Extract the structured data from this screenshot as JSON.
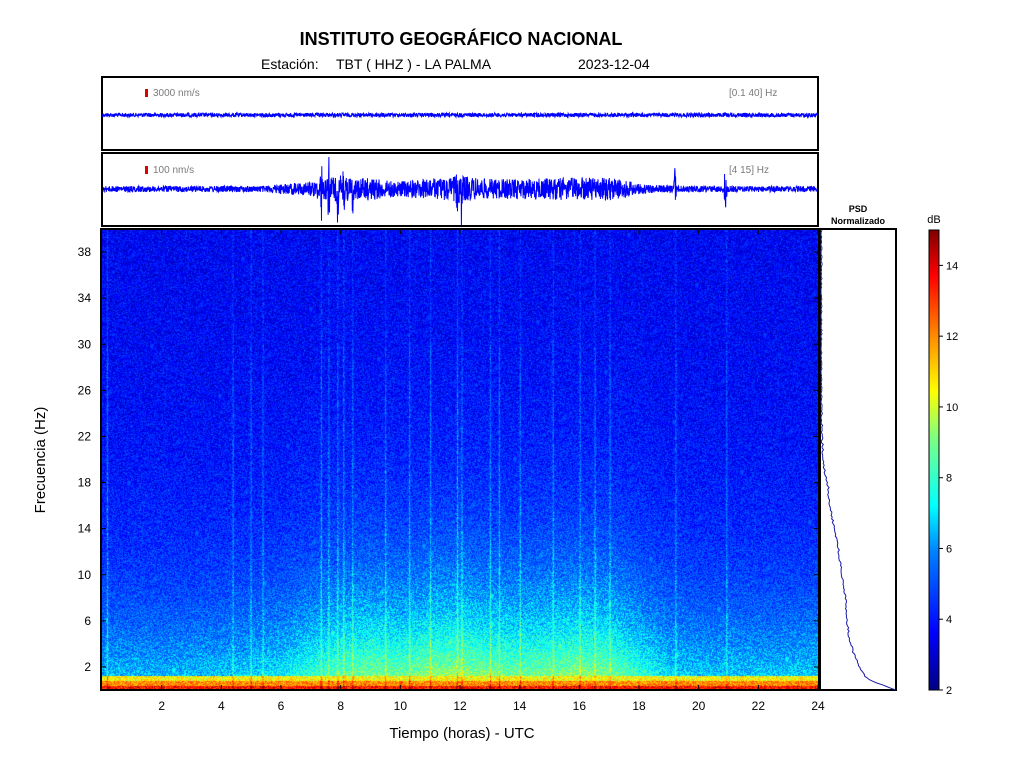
{
  "header": {
    "title": "INSTITUTO GEOGRÁFICO NACIONAL",
    "station_label": "Estación:",
    "station": "TBT ( HHZ ) - LA PALMA",
    "date": "2023-12-04"
  },
  "colors": {
    "trace": "#0000ff",
    "scale_bar": "#e00000",
    "psd_line": "#1a1aa8",
    "colormap": [
      "#000083",
      "#0000ff",
      "#0080ff",
      "#00ffff",
      "#80ff80",
      "#ffff00",
      "#ff8000",
      "#ff0000",
      "#800000"
    ]
  },
  "chart_data": [
    {
      "type": "line",
      "panel": "seismogram-broadband",
      "scale_label": "3000 nm/s",
      "filter_label": "[0.1 40] Hz",
      "x_range": [
        0,
        24
      ],
      "amplitude_envelope": {
        "x": [
          0,
          24
        ],
        "y": [
          0.06,
          0.06
        ]
      }
    },
    {
      "type": "line",
      "panel": "seismogram-filtered",
      "scale_label": "100 nm/s",
      "filter_label": "[4 15] Hz",
      "x_range": [
        0,
        24
      ],
      "amplitude_envelope": {
        "x": [
          0,
          5.5,
          6,
          7,
          7.3,
          7.7,
          8,
          8.4,
          9,
          9.5,
          10,
          11,
          11.8,
          12,
          12.2,
          13,
          14,
          15,
          16,
          17,
          17.5,
          18,
          19,
          20,
          22,
          24
        ],
        "y": [
          0.08,
          0.09,
          0.14,
          0.2,
          0.28,
          0.32,
          0.38,
          0.3,
          0.32,
          0.25,
          0.22,
          0.3,
          0.34,
          0.4,
          0.34,
          0.28,
          0.28,
          0.3,
          0.32,
          0.33,
          0.26,
          0.14,
          0.1,
          0.09,
          0.08,
          0.08
        ]
      },
      "spikes": [
        {
          "x": 7.35,
          "amp": 1.0
        },
        {
          "x": 7.6,
          "amp": 1.0
        },
        {
          "x": 7.9,
          "amp": 1.0
        },
        {
          "x": 8.1,
          "amp": 0.8
        },
        {
          "x": 8.4,
          "amp": 0.7
        },
        {
          "x": 11.9,
          "amp": 0.9
        },
        {
          "x": 12.05,
          "amp": 1.0
        },
        {
          "x": 19.2,
          "amp": 0.55
        },
        {
          "x": 20.9,
          "amp": 0.75
        }
      ]
    },
    {
      "type": "heatmap",
      "panel": "spectrogram",
      "xlabel": "Tiempo (horas) - UTC",
      "ylabel": "Frecuencia  (Hz)",
      "xlim": [
        0,
        24
      ],
      "ylim": [
        0,
        40
      ],
      "xticks": [
        2,
        4,
        6,
        8,
        10,
        12,
        14,
        16,
        18,
        20,
        22,
        24
      ],
      "yticks": [
        2,
        6,
        10,
        14,
        18,
        22,
        26,
        30,
        34,
        38
      ],
      "grid": false,
      "vertical_events_hours": [
        0.2,
        4.4,
        5.0,
        5.4,
        7.35,
        7.6,
        7.9,
        8.1,
        8.4,
        9.5,
        10.3,
        11.0,
        11.9,
        12.05,
        13.0,
        13.3,
        14.0,
        15.1,
        16.0,
        16.5,
        17.0,
        19.2,
        20.9
      ],
      "spectral_energy_profile": {
        "time_hours": [
          0,
          2,
          4,
          6,
          7,
          8,
          9,
          10,
          11,
          12,
          13,
          14,
          15,
          16,
          17,
          18,
          19,
          20,
          22,
          24
        ],
        "low_freq_db": [
          6.5,
          6.5,
          6.7,
          7.2,
          8.0,
          8.6,
          9.0,
          8.8,
          9.2,
          9.4,
          9.0,
          8.8,
          9.0,
          9.2,
          9.0,
          8.0,
          7.0,
          6.8,
          6.7,
          6.8
        ]
      }
    },
    {
      "type": "line",
      "panel": "psd-normalizado",
      "title": "PSD Normalizado",
      "x_range": [
        0,
        1
      ],
      "freq_hz": [
        0,
        0.5,
        1,
        2,
        3,
        4,
        5,
        6,
        7,
        8,
        9,
        10,
        11,
        12,
        13,
        14,
        15,
        16,
        17,
        17.5,
        18,
        18.5,
        19,
        19.5,
        20,
        21,
        22,
        23,
        24,
        26,
        28,
        30,
        34,
        38,
        40
      ],
      "psd": [
        1.0,
        0.8,
        0.62,
        0.52,
        0.45,
        0.4,
        0.37,
        0.35,
        0.34,
        0.33,
        0.3,
        0.28,
        0.26,
        0.24,
        0.21,
        0.18,
        0.15,
        0.12,
        0.1,
        0.1,
        0.08,
        0.06,
        0.05,
        0.04,
        0.03,
        0.02,
        0.015,
        0.01,
        0.008,
        0.005,
        0.004,
        0.003,
        0.002,
        0.002,
        0.002
      ]
    },
    {
      "type": "heatmap",
      "panel": "colorbar",
      "label": "dB",
      "range": [
        2,
        15
      ],
      "ticks": [
        2,
        4,
        6,
        8,
        10,
        12,
        14
      ]
    }
  ]
}
